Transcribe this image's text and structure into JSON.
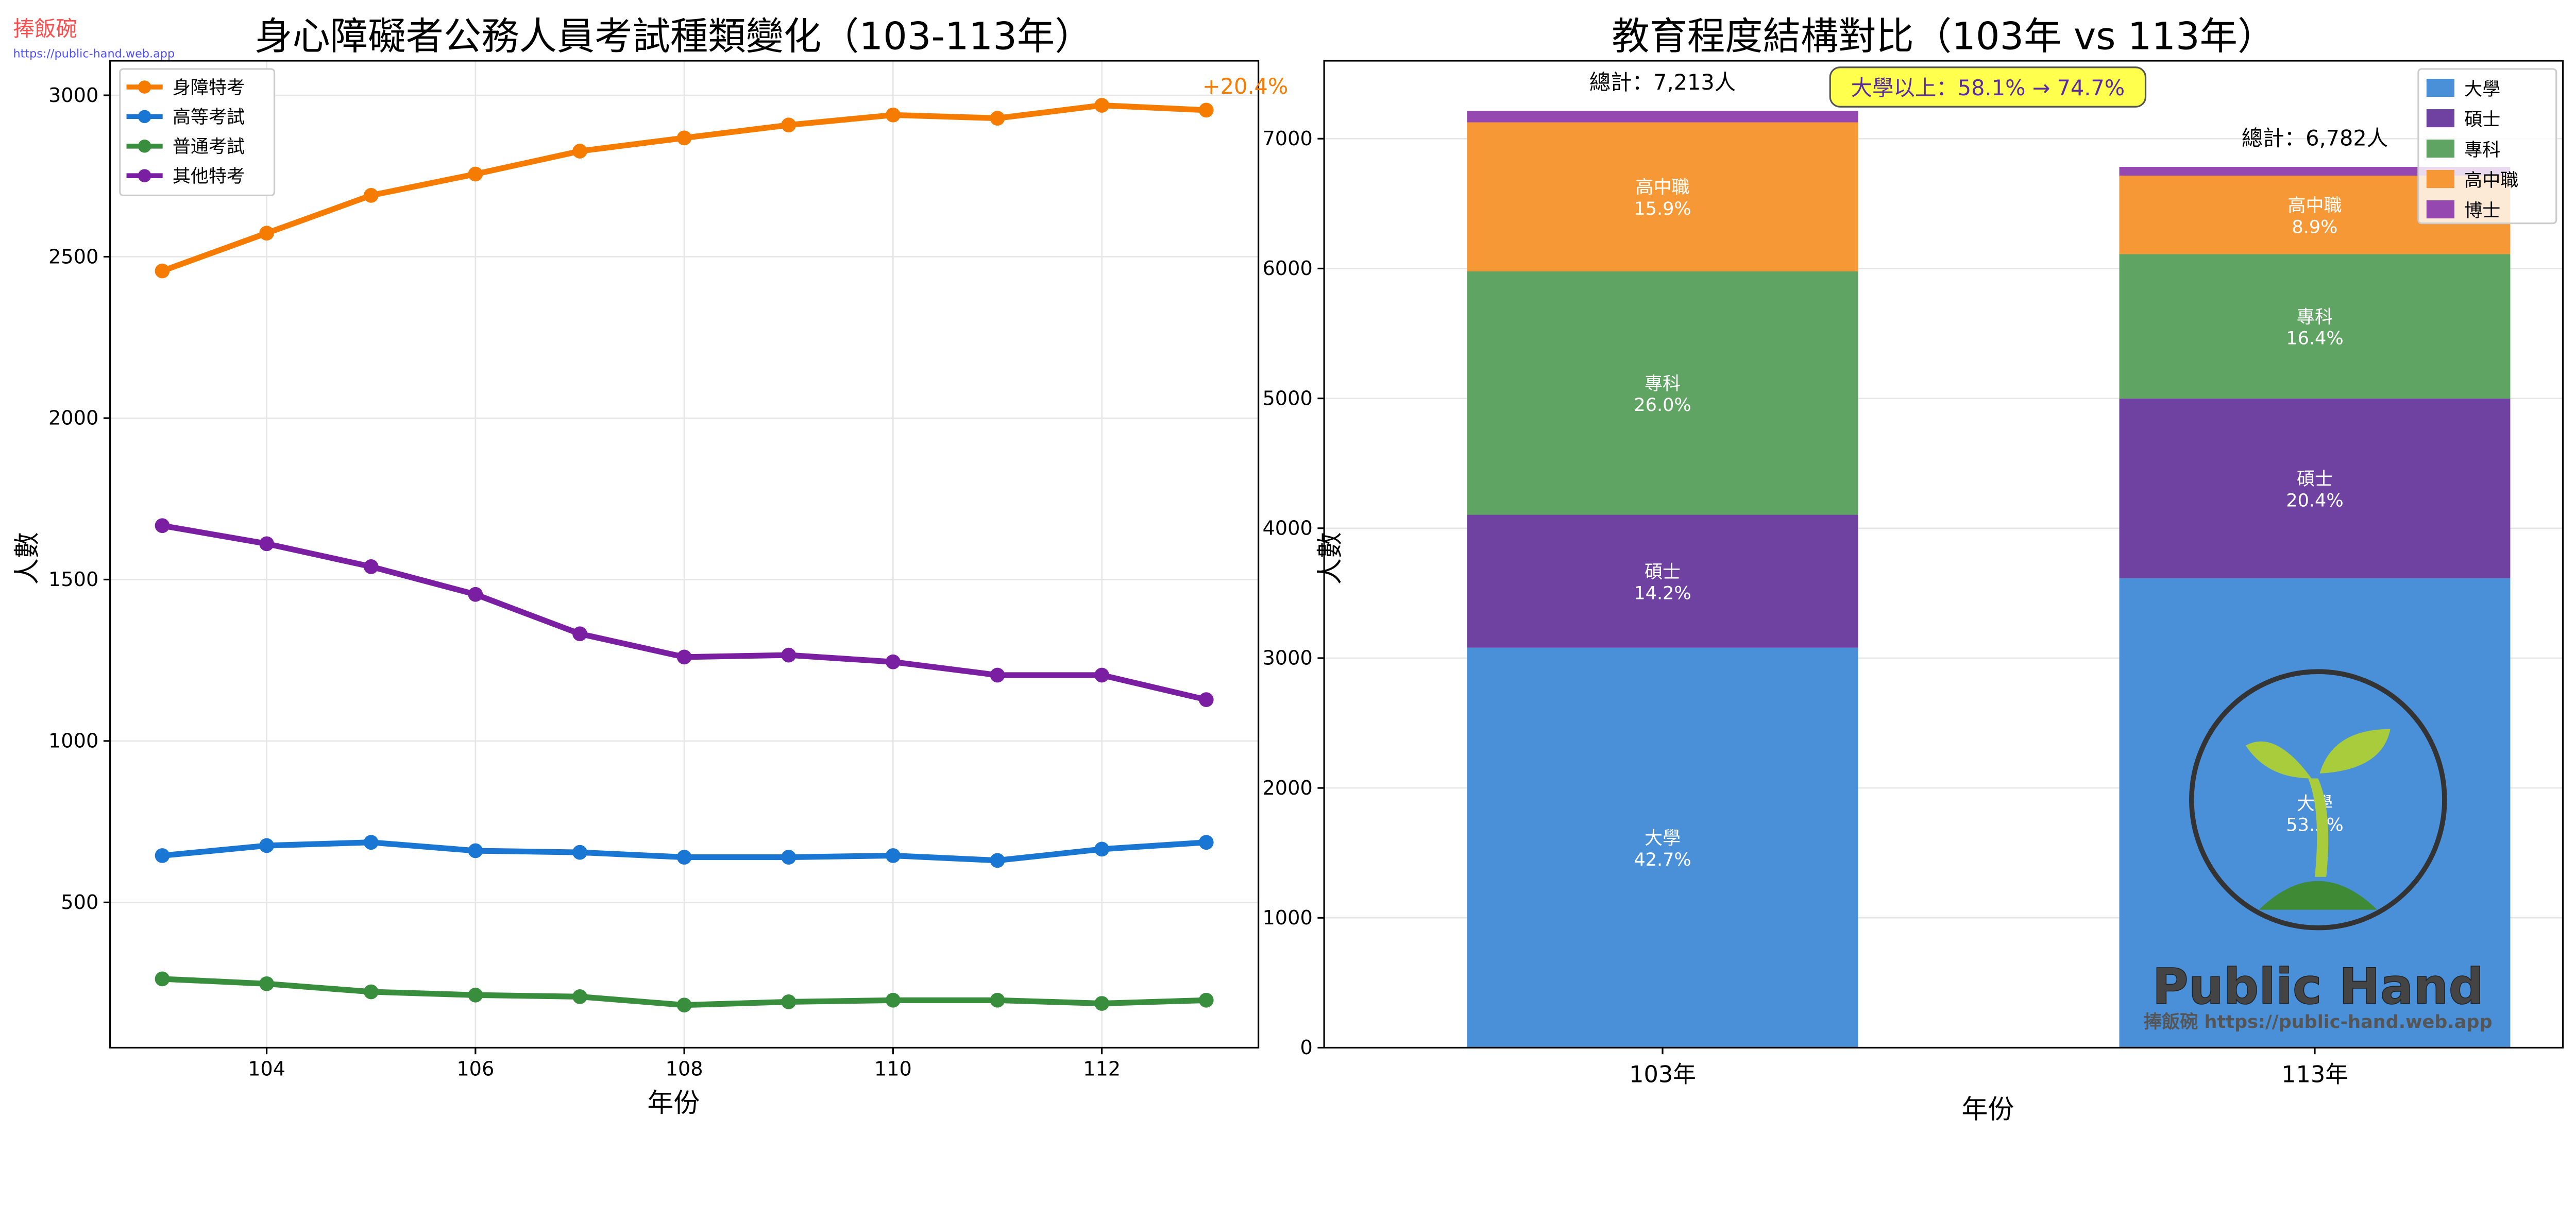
{
  "watermark": {
    "brand": "捧飯碗",
    "url": "https://public-hand.web.app",
    "logo_text": "Public Hand",
    "logo_subtext": "捧飯碗 https://public-hand.web.app"
  },
  "chart_data": [
    {
      "type": "line",
      "title": "身心障礙者公務人員考試種類變化（103-113年）",
      "xlabel": "年份",
      "ylabel": "人數",
      "x": [
        103,
        104,
        105,
        106,
        107,
        108,
        109,
        110,
        111,
        112,
        113
      ],
      "xticks": [
        "104",
        "106",
        "108",
        "110",
        "112"
      ],
      "yticks": [
        "500",
        "1000",
        "1500",
        "2000",
        "2500",
        "3000"
      ],
      "xlim": [
        102.5,
        113.5
      ],
      "ylim": [
        50,
        3107
      ],
      "grid": true,
      "legend": "top-left",
      "series": [
        {
          "name": "身障特考",
          "color": "#f57c00",
          "values": [
            2456,
            2573,
            2690,
            2756,
            2827,
            2868,
            2908,
            2939,
            2929,
            2969,
            2954
          ]
        },
        {
          "name": "高等考試",
          "color": "#1976d2",
          "values": [
            645,
            676,
            686,
            660,
            655,
            640,
            640,
            645,
            630,
            665,
            686
          ]
        },
        {
          "name": "普通考試",
          "color": "#388e3c",
          "values": [
            263,
            248,
            223,
            213,
            208,
            182,
            192,
            197,
            197,
            187,
            197
          ]
        },
        {
          "name": "其他特考",
          "color": "#7b1fa2",
          "values": [
            1667,
            1611,
            1540,
            1454,
            1332,
            1260,
            1266,
            1245,
            1204,
            1204,
            1128
          ]
        }
      ],
      "annotation": "+20.4%"
    },
    {
      "type": "bar",
      "stacked": true,
      "title": "教育程度結構對比（103年 vs 113年）",
      "xlabel": "年份",
      "ylabel": "人數",
      "categories": [
        "103年",
        "113年"
      ],
      "yticks": [
        "0",
        "1000",
        "2000",
        "3000",
        "4000",
        "5000",
        "6000",
        "7000"
      ],
      "ylim": [
        0,
        7600
      ],
      "grid": true,
      "legend": "top-right",
      "series": [
        {
          "name": "大學",
          "color": "#4a90d9",
          "values": [
            3080,
            3615
          ],
          "labels": [
            "42.7%",
            "53.3%"
          ]
        },
        {
          "name": "碩士",
          "color": "#6f42a1",
          "values": [
            1024,
            1384
          ],
          "labels": [
            "14.2%",
            "20.4%"
          ]
        },
        {
          "name": "專科",
          "color": "#5fa463",
          "values": [
            1875,
            1112
          ],
          "labels": [
            "26.0%",
            "16.4%"
          ]
        },
        {
          "name": "高中職",
          "color": "#f59835",
          "values": [
            1147,
            604
          ],
          "labels": [
            "15.9%",
            "8.9%"
          ]
        },
        {
          "name": "博士",
          "color": "#9549b0",
          "values": [
            87,
            68
          ],
          "labels": [
            "",
            ""
          ]
        }
      ],
      "totals": [
        "總計：7,213人",
        "總計：6,782人"
      ],
      "annotation": "大學以上：58.1% → 74.7%"
    }
  ]
}
